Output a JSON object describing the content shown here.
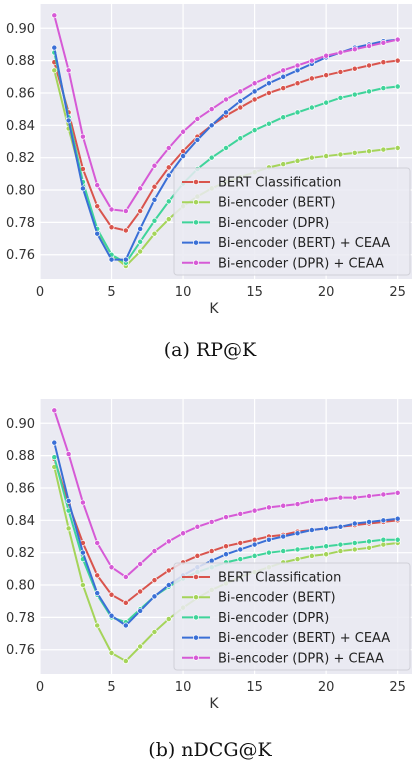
{
  "chart_data": [
    {
      "type": "line",
      "caption": "(a) RP@K",
      "xlabel": "K",
      "ylabel": "",
      "xlim": [
        0,
        26
      ],
      "ylim": [
        0.745,
        0.915
      ],
      "xticks": [
        0,
        5,
        10,
        15,
        20,
        25
      ],
      "yticks": [
        0.76,
        0.78,
        0.8,
        0.82,
        0.84,
        0.86,
        0.88,
        0.9
      ],
      "grid": true,
      "legend": "lower-right",
      "x": [
        1,
        2,
        3,
        4,
        5,
        6,
        7,
        8,
        9,
        10,
        11,
        12,
        13,
        14,
        15,
        16,
        17,
        18,
        19,
        20,
        21,
        22,
        23,
        24,
        25
      ],
      "series": [
        {
          "name": "BERT Classification",
          "color": "#d9544d",
          "values": [
            0.879,
            0.848,
            0.813,
            0.79,
            0.777,
            0.775,
            0.787,
            0.802,
            0.814,
            0.824,
            0.833,
            0.84,
            0.846,
            0.851,
            0.856,
            0.86,
            0.863,
            0.866,
            0.869,
            0.871,
            0.873,
            0.875,
            0.877,
            0.879,
            0.88
          ]
        },
        {
          "name": "Bi-encoder (BERT)",
          "color": "#a5d45a",
          "values": [
            0.874,
            0.838,
            0.805,
            0.775,
            0.76,
            0.753,
            0.762,
            0.773,
            0.782,
            0.79,
            0.796,
            0.801,
            0.805,
            0.808,
            0.811,
            0.814,
            0.816,
            0.818,
            0.82,
            0.821,
            0.822,
            0.823,
            0.824,
            0.825,
            0.826
          ]
        },
        {
          "name": "Bi-encoder (DPR)",
          "color": "#3fd49a",
          "values": [
            0.885,
            0.845,
            0.805,
            0.776,
            0.76,
            0.755,
            0.768,
            0.781,
            0.793,
            0.804,
            0.813,
            0.82,
            0.826,
            0.832,
            0.837,
            0.841,
            0.845,
            0.848,
            0.851,
            0.854,
            0.857,
            0.859,
            0.861,
            0.863,
            0.864
          ]
        },
        {
          "name": "Bi-encoder (BERT) + CEAA",
          "color": "#3a6fd6",
          "values": [
            0.888,
            0.843,
            0.801,
            0.773,
            0.757,
            0.757,
            0.776,
            0.794,
            0.809,
            0.821,
            0.831,
            0.84,
            0.848,
            0.855,
            0.861,
            0.866,
            0.87,
            0.874,
            0.878,
            0.882,
            0.885,
            0.888,
            0.89,
            0.892,
            0.893
          ]
        },
        {
          "name": "Bi-encoder (DPR) + CEAA",
          "color": "#d65ad6",
          "values": [
            0.908,
            0.874,
            0.833,
            0.803,
            0.788,
            0.787,
            0.801,
            0.815,
            0.826,
            0.836,
            0.844,
            0.85,
            0.856,
            0.861,
            0.866,
            0.87,
            0.874,
            0.877,
            0.88,
            0.883,
            0.885,
            0.887,
            0.889,
            0.891,
            0.893
          ]
        }
      ]
    },
    {
      "type": "line",
      "caption": "(b) nDCG@K",
      "xlabel": "K",
      "ylabel": "",
      "xlim": [
        0,
        26
      ],
      "ylim": [
        0.745,
        0.915
      ],
      "xticks": [
        0,
        5,
        10,
        15,
        20,
        25
      ],
      "yticks": [
        0.76,
        0.78,
        0.8,
        0.82,
        0.84,
        0.86,
        0.88,
        0.9
      ],
      "grid": true,
      "legend": "lower-right",
      "x": [
        1,
        2,
        3,
        4,
        5,
        6,
        7,
        8,
        9,
        10,
        11,
        12,
        13,
        14,
        15,
        16,
        17,
        18,
        19,
        20,
        21,
        22,
        23,
        24,
        25
      ],
      "series": [
        {
          "name": "BERT Classification",
          "color": "#d9544d",
          "values": [
            0.878,
            0.85,
            0.826,
            0.806,
            0.794,
            0.789,
            0.796,
            0.803,
            0.809,
            0.814,
            0.818,
            0.821,
            0.824,
            0.826,
            0.828,
            0.83,
            0.831,
            0.833,
            0.834,
            0.835,
            0.836,
            0.837,
            0.838,
            0.839,
            0.84
          ]
        },
        {
          "name": "Bi-encoder (BERT)",
          "color": "#a5d45a",
          "values": [
            0.873,
            0.835,
            0.8,
            0.775,
            0.758,
            0.753,
            0.762,
            0.771,
            0.779,
            0.786,
            0.792,
            0.797,
            0.801,
            0.805,
            0.808,
            0.811,
            0.814,
            0.816,
            0.818,
            0.819,
            0.821,
            0.822,
            0.823,
            0.825,
            0.826
          ]
        },
        {
          "name": "Bi-encoder (DPR)",
          "color": "#3fd49a",
          "values": [
            0.879,
            0.846,
            0.816,
            0.794,
            0.78,
            0.777,
            0.785,
            0.793,
            0.799,
            0.804,
            0.808,
            0.811,
            0.814,
            0.816,
            0.818,
            0.82,
            0.821,
            0.822,
            0.823,
            0.824,
            0.825,
            0.826,
            0.827,
            0.828,
            0.828
          ]
        },
        {
          "name": "Bi-encoder (BERT) + CEAA",
          "color": "#3a6fd6",
          "values": [
            0.888,
            0.852,
            0.82,
            0.795,
            0.781,
            0.775,
            0.784,
            0.793,
            0.8,
            0.806,
            0.811,
            0.815,
            0.819,
            0.822,
            0.825,
            0.828,
            0.83,
            0.832,
            0.834,
            0.835,
            0.836,
            0.838,
            0.839,
            0.84,
            0.841
          ]
        },
        {
          "name": "Bi-encoder (DPR) + CEAA",
          "color": "#d65ad6",
          "values": [
            0.908,
            0.881,
            0.851,
            0.826,
            0.811,
            0.805,
            0.813,
            0.821,
            0.827,
            0.832,
            0.836,
            0.839,
            0.842,
            0.844,
            0.846,
            0.848,
            0.849,
            0.85,
            0.852,
            0.853,
            0.854,
            0.854,
            0.855,
            0.856,
            0.857
          ]
        }
      ]
    }
  ]
}
